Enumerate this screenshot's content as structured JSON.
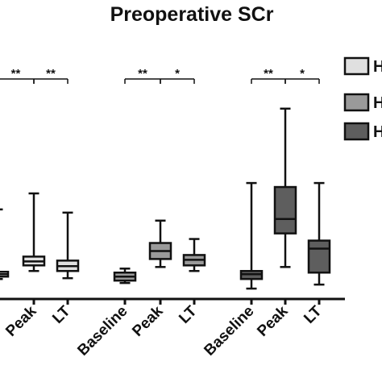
{
  "chart_data": {
    "type": "box",
    "title": "Preoperative SCr",
    "categories": [
      "Baseline",
      "Peak",
      "LT"
    ],
    "series": [
      {
        "name": "H",
        "color": "#e0e0e0",
        "boxes": [
          {
            "category": "Baseline",
            "min": 25,
            "q1": 28,
            "median": 31,
            "q3": 34,
            "max": 112
          },
          {
            "category": "Peak",
            "min": 35,
            "q1": 42,
            "median": 47,
            "q3": 53,
            "max": 132
          },
          {
            "category": "LT",
            "min": 26,
            "q1": 35,
            "median": 41,
            "q3": 48,
            "max": 108
          }
        ],
        "significance": [
          {
            "from": "Baseline",
            "to": "Peak",
            "label": "**"
          },
          {
            "from": "Peak",
            "to": "LT",
            "label": "**"
          }
        ]
      },
      {
        "name": "H",
        "color": "#9a9a9a",
        "boxes": [
          {
            "category": "Baseline",
            "min": 20,
            "q1": 23,
            "median": 28,
            "q3": 33,
            "max": 38
          },
          {
            "category": "Peak",
            "min": 40,
            "q1": 50,
            "median": 60,
            "q3": 70,
            "max": 98
          },
          {
            "category": "LT",
            "min": 35,
            "q1": 42,
            "median": 49,
            "q3": 55,
            "max": 75
          }
        ],
        "significance": [
          {
            "from": "Baseline",
            "to": "Peak",
            "label": "**"
          },
          {
            "from": "Peak",
            "to": "LT",
            "label": "*"
          }
        ]
      },
      {
        "name": "H",
        "color": "#5e5e5e",
        "boxes": [
          {
            "category": "Baseline",
            "min": 13,
            "q1": 25,
            "median": 31,
            "q3": 35,
            "max": 145
          },
          {
            "category": "Peak",
            "min": 40,
            "q1": 82,
            "median": 100,
            "q3": 140,
            "max": 238
          },
          {
            "category": "LT",
            "min": 18,
            "q1": 33,
            "median": 63,
            "q3": 73,
            "max": 145
          }
        ],
        "significance": [
          {
            "from": "Baseline",
            "to": "Peak",
            "label": "**"
          },
          {
            "from": "Peak",
            "to": "LT",
            "label": "*"
          }
        ]
      }
    ],
    "axes": {
      "ylim": [
        0,
        265
      ],
      "y_ticks_visible": false,
      "grid": false
    },
    "legend": {
      "position": "right",
      "entries": [
        "H",
        "H",
        "H"
      ]
    }
  }
}
